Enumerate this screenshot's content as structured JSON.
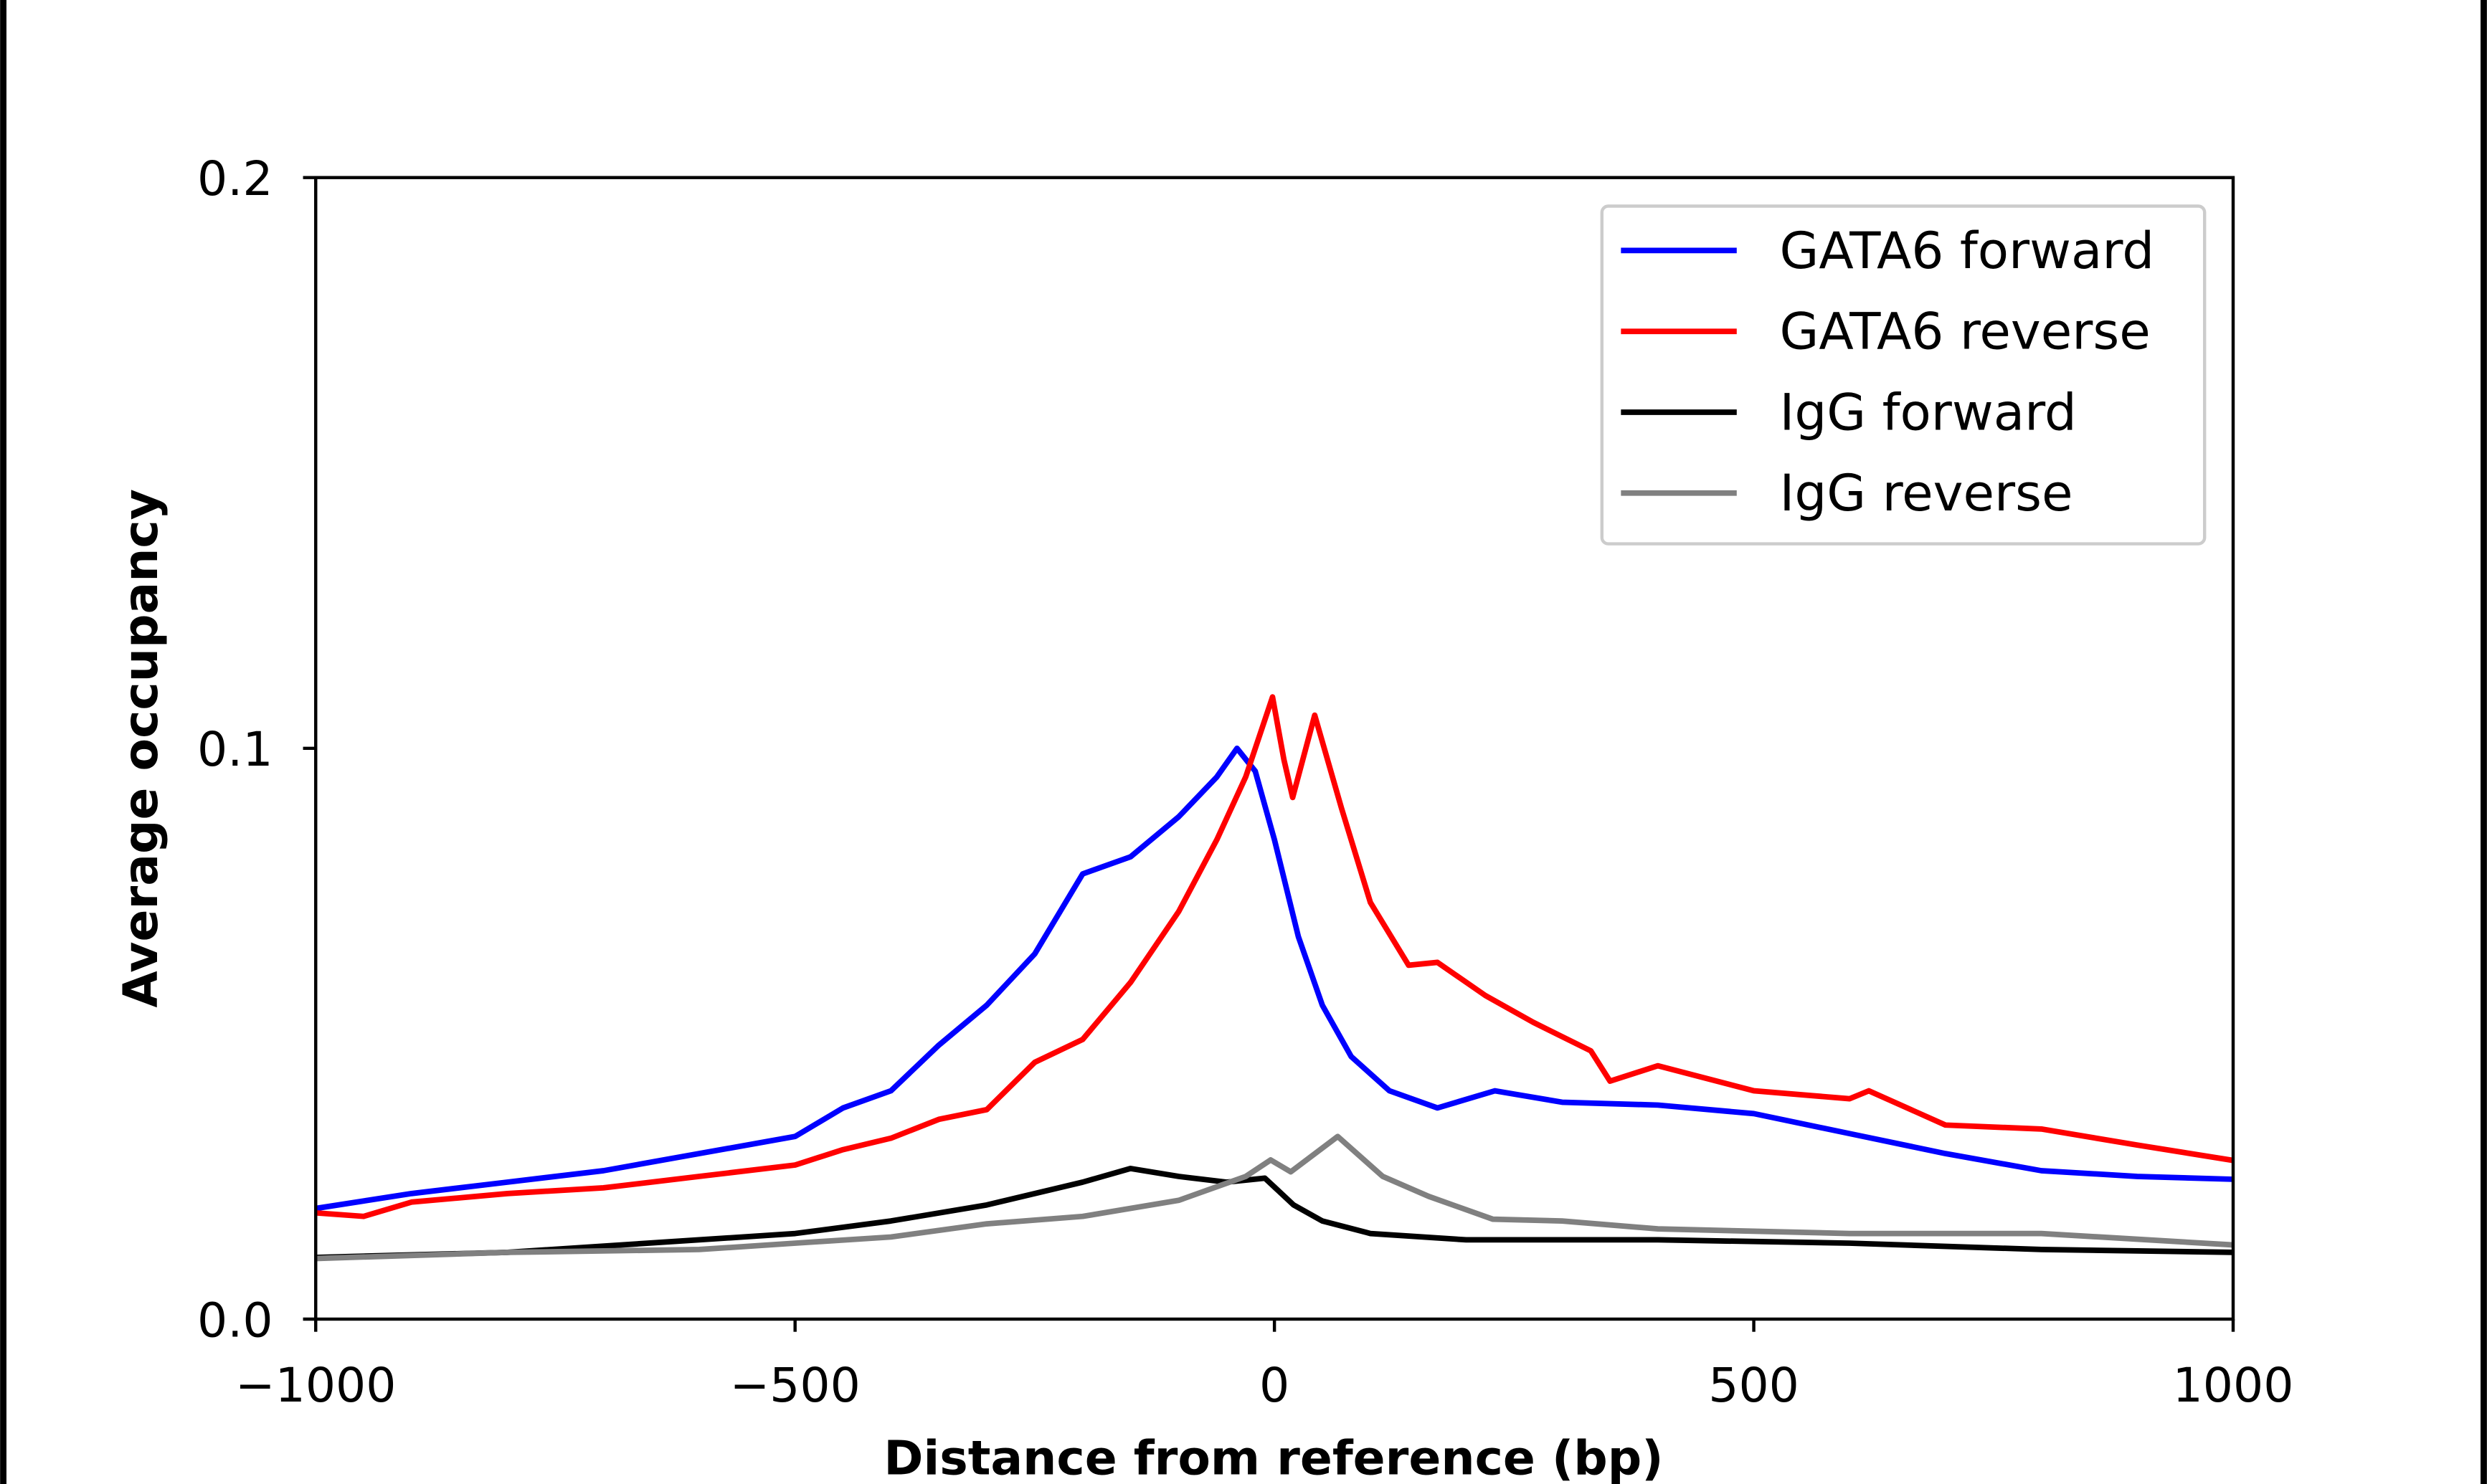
{
  "chart_data": {
    "type": "line",
    "title": "",
    "xlabel": "Distance from reference (bp)",
    "ylabel": "Average occupancy",
    "xlim": [
      -1000,
      1000
    ],
    "ylim": [
      0.0,
      0.2
    ],
    "xticks": [
      -1000,
      -500,
      0,
      500,
      1000
    ],
    "xtick_labels": [
      "−1000",
      "−500",
      "0",
      "500",
      "1000"
    ],
    "yticks": [
      0.0,
      0.1,
      0.2
    ],
    "ytick_labels": [
      "0.0",
      "0.1",
      "0.2"
    ],
    "grid": false,
    "legend_position": "top-right",
    "series": [
      {
        "name": "GATA6 forward",
        "color": "#0000ff",
        "x": [
          -1000,
          -900,
          -800,
          -700,
          -600,
          -500,
          -450,
          -400,
          -350,
          -300,
          -250,
          -200,
          -150,
          -100,
          -60,
          -39,
          -20,
          0,
          25,
          50,
          80,
          120,
          170,
          230,
          300,
          400,
          500,
          600,
          700,
          800,
          900,
          1000
        ],
        "y": [
          0.0194,
          0.022,
          0.024,
          0.026,
          0.029,
          0.032,
          0.037,
          0.04,
          0.048,
          0.055,
          0.064,
          0.078,
          0.081,
          0.088,
          0.095,
          0.1,
          0.096,
          0.084,
          0.067,
          0.055,
          0.046,
          0.04,
          0.037,
          0.04,
          0.038,
          0.0375,
          0.036,
          0.0325,
          0.029,
          0.026,
          0.025,
          0.0245
        ]
      },
      {
        "name": "GATA6 reverse",
        "color": "#ff0000",
        "x": [
          -1000,
          -950,
          -900,
          -800,
          -700,
          -600,
          -500,
          -450,
          -400,
          -350,
          -300,
          -250,
          -200,
          -150,
          -100,
          -60,
          -30,
          -2,
          10,
          19,
          42,
          70,
          100,
          140,
          170,
          220,
          270,
          330,
          350,
          400,
          500,
          600,
          620,
          700,
          800,
          900,
          1000
        ],
        "y": [
          0.0186,
          0.018,
          0.0205,
          0.022,
          0.023,
          0.025,
          0.027,
          0.0297,
          0.0317,
          0.035,
          0.0367,
          0.045,
          0.049,
          0.059,
          0.0714,
          0.084,
          0.095,
          0.109,
          0.098,
          0.0914,
          0.1058,
          0.0895,
          0.073,
          0.062,
          0.0625,
          0.0567,
          0.052,
          0.047,
          0.0417,
          0.0444,
          0.04,
          0.0386,
          0.04,
          0.034,
          0.0333,
          0.0305,
          0.0278
        ]
      },
      {
        "name": "IgG forward",
        "color": "#000000",
        "x": [
          -1000,
          -800,
          -600,
          -500,
          -400,
          -300,
          -200,
          -150,
          -100,
          -50,
          -10,
          20,
          50,
          100,
          200,
          400,
          600,
          800,
          1000
        ],
        "y": [
          0.0108,
          0.0117,
          0.0139,
          0.015,
          0.0172,
          0.02,
          0.024,
          0.0264,
          0.025,
          0.024,
          0.0247,
          0.02,
          0.0172,
          0.015,
          0.0139,
          0.0139,
          0.0133,
          0.0122,
          0.0117
        ]
      },
      {
        "name": "IgG reverse",
        "color": "#808080",
        "x": [
          -1000,
          -800,
          -600,
          -500,
          -400,
          -300,
          -200,
          -100,
          -30,
          -4,
          17,
          66,
          113,
          161,
          228,
          300,
          400,
          600,
          800,
          1000
        ],
        "y": [
          0.0106,
          0.0117,
          0.0122,
          0.0133,
          0.0144,
          0.0167,
          0.018,
          0.0208,
          0.025,
          0.0279,
          0.0258,
          0.032,
          0.025,
          0.0215,
          0.0175,
          0.0172,
          0.0158,
          0.015,
          0.015,
          0.013
        ]
      }
    ]
  }
}
